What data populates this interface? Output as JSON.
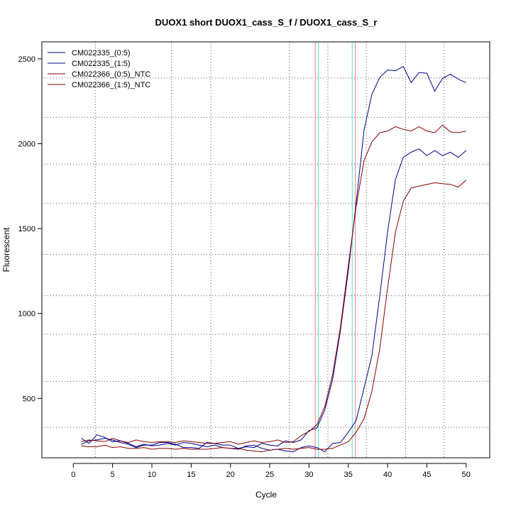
{
  "chart_data": {
    "type": "line",
    "title": "DUOX1 short DUOX1_cass_S_f / DUOX1_cass_S_r",
    "xlabel": "Cycle",
    "ylabel": "Fluorescent",
    "xlim": [
      -4,
      53
    ],
    "ylim": [
      150,
      2600
    ],
    "xticks": [
      0,
      5,
      10,
      15,
      20,
      25,
      30,
      35,
      40,
      45,
      50
    ],
    "yticks": [
      500,
      1000,
      1500,
      2000,
      2500
    ],
    "grid": "dotted",
    "legend_position": "top-left",
    "x": [
      1,
      2,
      3,
      4,
      5,
      6,
      7,
      8,
      9,
      10,
      11,
      12,
      13,
      14,
      15,
      16,
      17,
      18,
      19,
      20,
      21,
      22,
      23,
      24,
      25,
      26,
      27,
      28,
      29,
      30,
      31,
      32,
      33,
      34,
      35,
      36,
      37,
      38,
      39,
      40,
      41,
      42,
      43,
      44,
      45,
      46,
      47,
      48,
      49,
      50
    ],
    "series": [
      {
        "name": "CM022335_(0:5)",
        "color": "#00008B",
        "values": [
          265,
          235,
          285,
          270,
          245,
          250,
          235,
          215,
          230,
          220,
          225,
          235,
          225,
          240,
          235,
          225,
          215,
          225,
          210,
          205,
          200,
          220,
          225,
          205,
          195,
          200,
          190,
          185,
          210,
          220,
          210,
          185,
          235,
          240,
          300,
          370,
          560,
          750,
          1100,
          1480,
          1790,
          1920,
          1950,
          1970,
          1930,
          1960,
          1930,
          1950,
          1920,
          1960
        ]
      },
      {
        "name": "CM022335_(1:5)",
        "color": "#00008B",
        "values": [
          230,
          250,
          255,
          265,
          255,
          240,
          230,
          210,
          225,
          225,
          240,
          240,
          230,
          210,
          210,
          205,
          240,
          235,
          225,
          225,
          205,
          215,
          210,
          235,
          225,
          220,
          250,
          240,
          255,
          310,
          325,
          430,
          610,
          900,
          1250,
          1650,
          2080,
          2290,
          2390,
          2435,
          2430,
          2455,
          2360,
          2420,
          2415,
          2310,
          2385,
          2410,
          2380,
          2360
        ]
      },
      {
        "name": "CM022366_(0:5)_NTC",
        "color": "#8B0000",
        "values": [
          220,
          215,
          215,
          225,
          210,
          215,
          205,
          205,
          210,
          200,
          205,
          205,
          200,
          205,
          200,
          200,
          200,
          205,
          210,
          205,
          205,
          195,
          190,
          185,
          195,
          200,
          205,
          200,
          205,
          210,
          200,
          200,
          205,
          225,
          245,
          300,
          380,
          540,
          790,
          1150,
          1480,
          1660,
          1740,
          1750,
          1760,
          1770,
          1765,
          1760,
          1745,
          1785
        ]
      },
      {
        "name": "CM022366_(1:5)_NTC",
        "color": "#8B0000",
        "values": [
          245,
          255,
          250,
          245,
          265,
          250,
          240,
          255,
          245,
          240,
          245,
          245,
          240,
          250,
          245,
          240,
          235,
          235,
          240,
          245,
          230,
          240,
          250,
          240,
          245,
          255,
          240,
          245,
          280,
          305,
          345,
          450,
          640,
          920,
          1280,
          1630,
          1900,
          2010,
          2065,
          2075,
          2100,
          2085,
          2075,
          2100,
          2075,
          2065,
          2110,
          2070,
          2065,
          2075
        ]
      }
    ],
    "vlines": [
      {
        "x": 30.8,
        "color": "#F08080"
      },
      {
        "x": 31.2,
        "color": "#40E0E0"
      },
      {
        "x": 35.5,
        "color": "#40E0E0"
      },
      {
        "x": 35.9,
        "color": "#F08080"
      }
    ],
    "dotted_vlines": [
      2.8,
      12.5,
      17.5,
      27.5,
      32.4,
      37.3,
      42.3,
      47.2
    ],
    "dotted_hlines": [
      330,
      600,
      878,
      1105,
      1348,
      1650,
      1880,
      2155,
      2388
    ]
  }
}
